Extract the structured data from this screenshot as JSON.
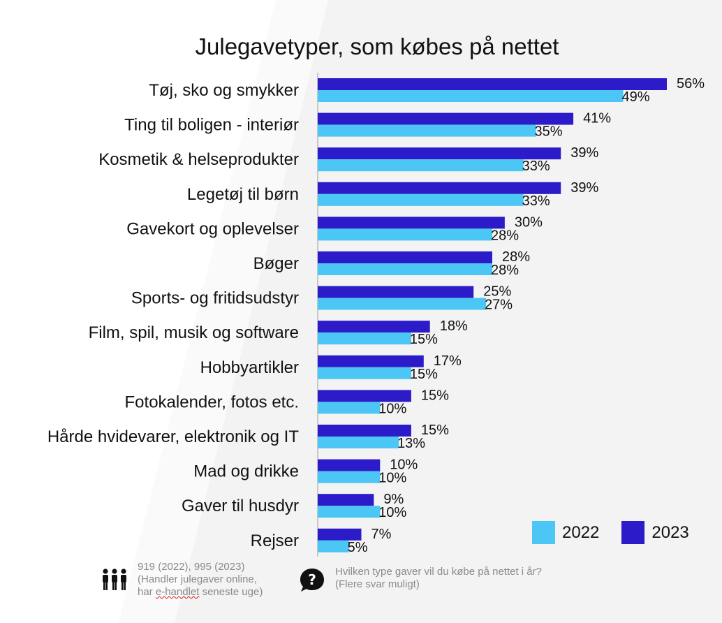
{
  "title": "Julegavetyper, som købes på nettet",
  "colors": {
    "2022": "#4cc6f5",
    "2023": "#2b1bc8",
    "axis": "#c8c8c8"
  },
  "legend": [
    {
      "label": "2022",
      "color": "#4cc6f5"
    },
    {
      "label": "2023",
      "color": "#2b1bc8"
    }
  ],
  "footer": {
    "sample": {
      "icon": "people-icon",
      "line1": "919 (2022), 995 (2023)",
      "line2": "(Handler julegaver online,",
      "line3_prefix": "har ",
      "line3_marked": "e-handlet",
      "line3_suffix": " seneste uge)"
    },
    "question": {
      "icon": "question-bubble-icon",
      "line1": "Hvilken type gaver vil du købe på nettet i år?",
      "line2": "(Flere svar muligt)"
    }
  },
  "chart_data": {
    "type": "bar",
    "orientation": "horizontal",
    "title": "Julegavetyper, som købes på nettet",
    "categories": [
      "Tøj, sko og smykker",
      "Ting til boligen - interiør",
      "Kosmetik & helseprodukter",
      "Legetøj til børn",
      "Gavekort og oplevelser",
      "Bøger",
      "Sports- og fritidsudstyr",
      "Film, spil, musik og software",
      "Hobbyartikler",
      "Fotokalender, fotos etc.",
      "Hårde hvidevarer, elektronik og IT",
      "Mad og drikke",
      "Gaver til husdyr",
      "Rejser"
    ],
    "series": [
      {
        "name": "2023",
        "color": "#2b1bc8",
        "values": [
          56,
          41,
          39,
          39,
          30,
          28,
          25,
          18,
          17,
          15,
          15,
          10,
          9,
          7
        ]
      },
      {
        "name": "2022",
        "color": "#4cc6f5",
        "values": [
          49,
          35,
          33,
          33,
          28,
          28,
          27,
          15,
          15,
          10,
          13,
          10,
          10,
          5
        ]
      }
    ],
    "value_suffix": "%",
    "xlim": [
      0,
      56
    ],
    "legend_position": "bottom-right",
    "grid": false
  }
}
